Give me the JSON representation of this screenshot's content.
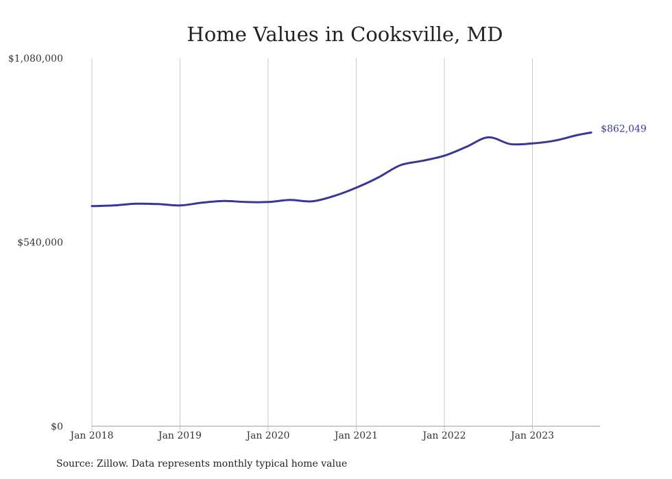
{
  "chart_data": {
    "type": "line",
    "title": "Home Values in Cooksville, MD",
    "xlabel": "",
    "ylabel": "",
    "x_tick_labels": [
      "Jan 2018",
      "Jan 2019",
      "Jan 2020",
      "Jan 2021",
      "Jan 2022",
      "Jan 2023"
    ],
    "y_tick_labels": [
      "$0",
      "$540,000",
      "$1,080,000"
    ],
    "ylim": [
      0,
      1080000
    ],
    "xlim": [
      "2018-01",
      "2023-12"
    ],
    "grid": "vertical",
    "legend": "none",
    "series": [
      {
        "color": "#3b3597",
        "points": [
          {
            "x": "2018-01",
            "y": 646000
          },
          {
            "x": "2018-04",
            "y": 648000
          },
          {
            "x": "2018-07",
            "y": 653000
          },
          {
            "x": "2018-10",
            "y": 652000
          },
          {
            "x": "2019-01",
            "y": 648000
          },
          {
            "x": "2019-04",
            "y": 656000
          },
          {
            "x": "2019-07",
            "y": 661000
          },
          {
            "x": "2019-10",
            "y": 658000
          },
          {
            "x": "2020-01",
            "y": 658000
          },
          {
            "x": "2020-04",
            "y": 664000
          },
          {
            "x": "2020-07",
            "y": 660000
          },
          {
            "x": "2020-10",
            "y": 676000
          },
          {
            "x": "2021-01",
            "y": 700000
          },
          {
            "x": "2021-04",
            "y": 730000
          },
          {
            "x": "2021-07",
            "y": 766000
          },
          {
            "x": "2021-10",
            "y": 779000
          },
          {
            "x": "2022-01",
            "y": 794000
          },
          {
            "x": "2022-04",
            "y": 820000
          },
          {
            "x": "2022-07",
            "y": 848000
          },
          {
            "x": "2022-10",
            "y": 828000
          },
          {
            "x": "2023-01",
            "y": 830000
          },
          {
            "x": "2023-04",
            "y": 838000
          },
          {
            "x": "2023-07",
            "y": 854000
          },
          {
            "x": "2023-09",
            "y": 862049
          }
        ]
      }
    ],
    "end_label": "$862,049"
  },
  "source_note": "Source: Zillow. Data represents monthly typical home value",
  "colors": {
    "line": "#3b3597",
    "grid": "#c8c8c8",
    "axis": "#9a9a9a"
  }
}
